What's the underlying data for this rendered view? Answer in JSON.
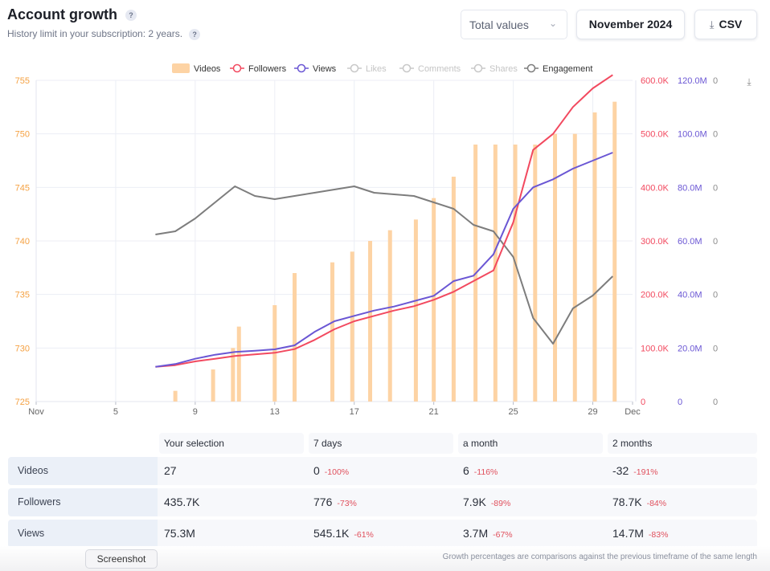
{
  "header": {
    "title": "Account growth",
    "help_glyph": "?",
    "subtitle": "History limit in your subscription: 2 years.",
    "select_value": "Total values",
    "month_button": "November 2024",
    "csv_button": "CSV"
  },
  "colors": {
    "videos": "#fdd3a4",
    "followers": "#f2495f",
    "views": "#6a56d4",
    "engagement": "#7d7d7d",
    "disabled": "#c8c8c8",
    "left_axis": "#f5a142"
  },
  "chart_data": {
    "type": "bar+line",
    "legend": [
      {
        "name": "Videos",
        "kind": "bar",
        "enabled": true
      },
      {
        "name": "Followers",
        "kind": "line",
        "enabled": true
      },
      {
        "name": "Views",
        "kind": "line",
        "enabled": true
      },
      {
        "name": "Likes",
        "kind": "line",
        "enabled": false
      },
      {
        "name": "Comments",
        "kind": "line",
        "enabled": false
      },
      {
        "name": "Shares",
        "kind": "line",
        "enabled": false
      },
      {
        "name": "Engagement",
        "kind": "line",
        "enabled": true
      }
    ],
    "legend_position": "top-center",
    "x_range": [
      1,
      31
    ],
    "x_ticks": [
      {
        "day": 1,
        "label": "Nov"
      },
      {
        "day": 5,
        "label": "5"
      },
      {
        "day": 9,
        "label": "9"
      },
      {
        "day": 13,
        "label": "13"
      },
      {
        "day": 17,
        "label": "17"
      },
      {
        "day": 21,
        "label": "21"
      },
      {
        "day": 25,
        "label": "25"
      },
      {
        "day": 29,
        "label": "29"
      },
      {
        "day": 31,
        "label": "Dec"
      }
    ],
    "y_left": {
      "range": [
        725,
        755
      ],
      "ticks": [
        "755",
        "750",
        "745",
        "740",
        "735",
        "730",
        "725"
      ],
      "values": [
        755,
        750,
        745,
        740,
        735,
        730,
        725
      ]
    },
    "y_followers": {
      "range": [
        0,
        600000
      ],
      "ticks": [
        "600.0K",
        "500.0K",
        "400.0K",
        "300.0K",
        "200.0K",
        "100.0K",
        "0"
      ]
    },
    "y_views": {
      "range": [
        0,
        120000000
      ],
      "ticks": [
        "120.0M",
        "100.0M",
        "80.0M",
        "60.0M",
        "40.0M",
        "20.0M",
        "0"
      ]
    },
    "y_engagement": {
      "ticks": [
        "0",
        "0",
        "0",
        "0",
        "0",
        "0",
        "0"
      ]
    },
    "grid": true,
    "videos": {
      "days": [
        8,
        9.9,
        10.9,
        11.2,
        13,
        14,
        15.9,
        16.9,
        17.8,
        18.8,
        20.1,
        21,
        22,
        23.1,
        24.1,
        25.1,
        26.1,
        27.1,
        28.1,
        29.1,
        30.1
      ],
      "values": [
        726,
        728,
        730,
        732,
        734,
        737,
        738,
        739,
        740,
        741,
        742,
        744,
        746,
        749,
        749,
        749,
        749,
        750,
        750,
        752,
        753
      ]
    },
    "followers": {
      "days": [
        7,
        8,
        9,
        10,
        11,
        12,
        13,
        14,
        15,
        16,
        17,
        18,
        19,
        20,
        21,
        22,
        23,
        24,
        25,
        26,
        27,
        28,
        29,
        30
      ],
      "values": [
        65000,
        68000,
        75000,
        80000,
        85000,
        88000,
        91000,
        98000,
        115000,
        135000,
        150000,
        160000,
        170000,
        178000,
        190000,
        205000,
        225000,
        245000,
        335000,
        470000,
        500000,
        550000,
        585000,
        610000
      ]
    },
    "views": {
      "days": [
        7,
        8,
        9,
        10,
        11,
        12,
        13,
        14,
        15,
        16,
        17,
        18,
        19,
        20,
        21,
        22,
        23,
        24,
        25,
        26,
        27,
        28,
        29,
        30
      ],
      "values": [
        13000000,
        14000000,
        16000000,
        17500000,
        18500000,
        19000000,
        19500000,
        21000000,
        26000000,
        30000000,
        32000000,
        34000000,
        35500000,
        37500000,
        39500000,
        45000000,
        47000000,
        55000000,
        72000000,
        80000000,
        83000000,
        87000000,
        90000000,
        93000000
      ]
    },
    "engagement_relative": {
      "days": [
        7,
        8,
        9,
        10,
        11,
        12,
        13,
        14,
        15,
        16,
        17,
        18,
        19,
        20,
        21,
        22,
        23,
        24,
        25,
        26,
        27,
        28,
        29,
        30
      ],
      "values": [
        0.52,
        0.53,
        0.57,
        0.62,
        0.67,
        0.64,
        0.63,
        0.64,
        0.65,
        0.66,
        0.67,
        0.65,
        0.645,
        0.64,
        0.62,
        0.6,
        0.55,
        0.53,
        0.45,
        0.26,
        0.18,
        0.29,
        0.33,
        0.39
      ]
    }
  },
  "table": {
    "headers": [
      "Your selection",
      "7 days",
      "a month",
      "2 months"
    ],
    "rows": [
      {
        "label": "Videos",
        "cells": [
          {
            "value": "27",
            "pct": ""
          },
          {
            "value": "0",
            "pct": "-100%"
          },
          {
            "value": "6",
            "pct": "-116%"
          },
          {
            "value": "-32",
            "pct": "-191%"
          }
        ]
      },
      {
        "label": "Followers",
        "cells": [
          {
            "value": "435.7K",
            "pct": ""
          },
          {
            "value": "776",
            "pct": "-73%"
          },
          {
            "value": "7.9K",
            "pct": "-89%"
          },
          {
            "value": "78.7K",
            "pct": "-84%"
          }
        ]
      },
      {
        "label": "Views",
        "cells": [
          {
            "value": "75.3M",
            "pct": ""
          },
          {
            "value": "545.1K",
            "pct": "-61%"
          },
          {
            "value": "3.7M",
            "pct": "-67%"
          },
          {
            "value": "14.7M",
            "pct": "-83%"
          }
        ]
      }
    ],
    "note": "Growth percentages are comparisons against the previous timeframe of the same length"
  },
  "tooltip": {
    "label": "Screenshot"
  }
}
